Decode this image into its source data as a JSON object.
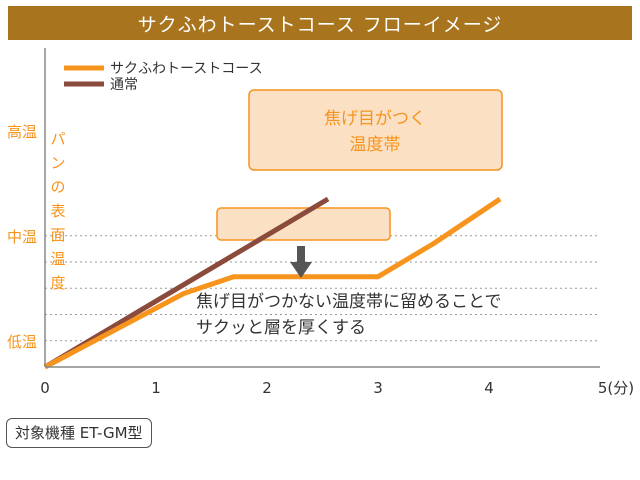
{
  "colors": {
    "title_bg": "#a8741e",
    "toast": "#f7941d",
    "normal": "#8a4a3c",
    "band_fill": "#fbe0c4",
    "band_border": "#f7941d",
    "axis_label": "#f7941d",
    "arrow": "#555555"
  },
  "chart_data": {
    "type": "line",
    "title": "サクふわトーストコース フローイメージ",
    "xlabel": "",
    "x_unit_label": "5(分)",
    "xlim": [
      0,
      5
    ],
    "x_ticks": [
      "0",
      "1",
      "2",
      "3",
      "4"
    ],
    "y_levels": [
      "低温",
      "中温",
      "高温"
    ],
    "ylabel_vertical": [
      "パ",
      "ン",
      "の",
      "表",
      "面",
      "温",
      "度"
    ],
    "grid": "dotted-horizontal",
    "legend_position": "top-left",
    "series": [
      {
        "name": "サクふわトーストコース",
        "color": "#f7941d",
        "x": [
          0,
          1.25,
          1.7,
          3.0,
          3.5,
          4.1
        ],
        "y": [
          0,
          1.4,
          1.72,
          1.72,
          2.35,
          3.2
        ]
      },
      {
        "name": "通常",
        "color": "#8a4a3c",
        "x": [
          0,
          2.55
        ],
        "y": [
          0,
          3.2
        ]
      }
    ],
    "annotations": {
      "browning_band": {
        "line1": "焦げ目がつく",
        "line2": "温度帯"
      },
      "hold_note": {
        "line1": "焦げ目がつかない温度帯に留めることで",
        "line2": "サクッと層を厚くする"
      }
    }
  },
  "footer": {
    "model": "対象機種 ET-GM型"
  }
}
